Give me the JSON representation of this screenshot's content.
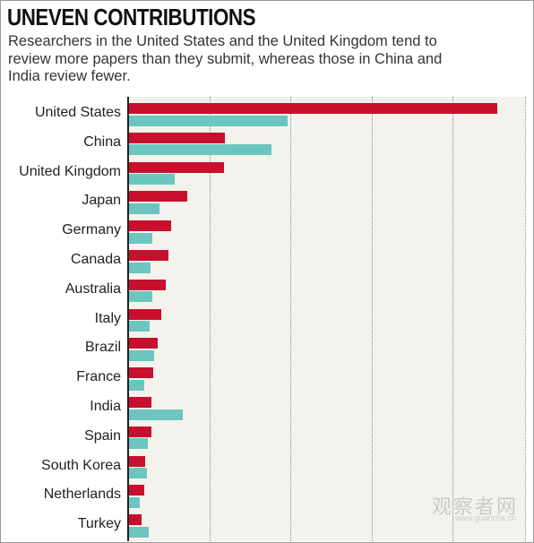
{
  "header": {
    "title": "UNEVEN CONTRIBUTIONS",
    "subtitle": "Researchers in the United States and the United Kingdom tend to review more papers than they submit, whereas those in China and India review fewer."
  },
  "watermark": {
    "text": "观察者网",
    "url": "www.guancha.cn"
  },
  "colors": {
    "series_a": "#c8102e",
    "series_b": "#6cc5c0",
    "plot_background": "#f4f2ec"
  },
  "chart_data": {
    "type": "bar",
    "orientation": "horizontal",
    "title": "UNEVEN CONTRIBUTIONS",
    "subtitle": "Researchers in the United States and the United Kingdom tend to review more papers than they submit, whereas those in China and India review fewer.",
    "categories": [
      "United States",
      "China",
      "United Kingdom",
      "Japan",
      "Germany",
      "Canada",
      "Australia",
      "Italy",
      "Brazil",
      "France",
      "India",
      "Spain",
      "South Korea",
      "Netherlands",
      "Turkey"
    ],
    "series": [
      {
        "color": "#c8102e",
        "values": [
          45.6,
          11.9,
          11.8,
          7.2,
          5.2,
          4.9,
          4.6,
          4.0,
          3.5,
          3.0,
          2.8,
          2.8,
          2.0,
          1.9,
          1.5
        ]
      },
      {
        "color": "#6cc5c0",
        "values": [
          19.6,
          17.6,
          5.7,
          3.8,
          2.9,
          2.7,
          2.9,
          2.6,
          3.1,
          1.9,
          6.6,
          2.3,
          2.2,
          1.3,
          2.4
        ]
      }
    ],
    "xlim": [
      0,
      49
    ],
    "grid_x": [
      10,
      20,
      30,
      40,
      49
    ],
    "grid": true,
    "tick_labels_shown": false,
    "legend": "none"
  }
}
